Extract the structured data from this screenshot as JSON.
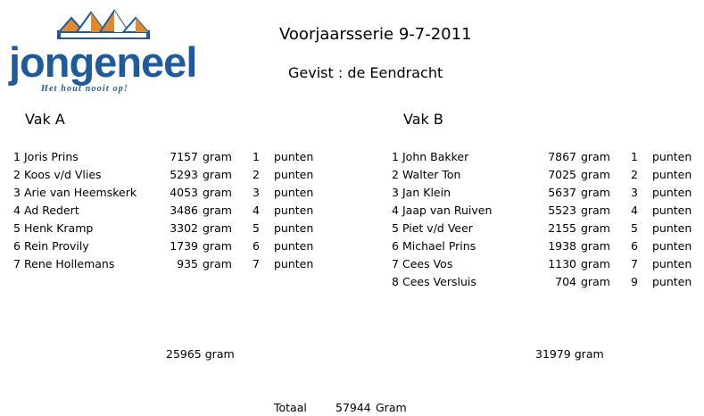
{
  "logo": {
    "name": "jongeneel",
    "tagline": "Het hout nooit op!"
  },
  "title": "Voorjaarsserie 9-7-2011",
  "subtitle": "Gevist : de Eendracht",
  "vak_a": {
    "label": "Vak  A",
    "rows": [
      {
        "rank": "1",
        "name": "Joris Prins",
        "weight": "7157",
        "unit": "gram",
        "points": "1",
        "points_label": "punten"
      },
      {
        "rank": "2",
        "name": "Koos v/d Vlies",
        "weight": "5293",
        "unit": "gram",
        "points": "2",
        "points_label": "punten"
      },
      {
        "rank": "3",
        "name": "Arie van Heemskerk",
        "weight": "4053",
        "unit": "gram",
        "points": "3",
        "points_label": "punten"
      },
      {
        "rank": "4",
        "name": "Ad Redert",
        "weight": "3486",
        "unit": "gram",
        "points": "4",
        "points_label": "punten"
      },
      {
        "rank": "5",
        "name": "Henk Kramp",
        "weight": "3302",
        "unit": "gram",
        "points": "5",
        "points_label": "punten"
      },
      {
        "rank": "6",
        "name": "Rein Provily",
        "weight": "1739",
        "unit": "gram",
        "points": "6",
        "points_label": "punten"
      },
      {
        "rank": "7",
        "name": "Rene Hollemans",
        "weight": "935",
        "unit": "gram",
        "points": "7",
        "points_label": "punten"
      }
    ],
    "total": "25965",
    "total_unit": "gram"
  },
  "vak_b": {
    "label": "Vak  B",
    "rows": [
      {
        "rank": "1",
        "name": "John Bakker",
        "weight": "7867",
        "unit": "gram",
        "points": "1",
        "points_label": "punten"
      },
      {
        "rank": "2",
        "name": "Walter Ton",
        "weight": "7025",
        "unit": "gram",
        "points": "2",
        "points_label": "punten"
      },
      {
        "rank": "3",
        "name": "Jan Klein",
        "weight": "5637",
        "unit": "gram",
        "points": "3",
        "points_label": "punten"
      },
      {
        "rank": "4",
        "name": "Jaap van Ruiven",
        "weight": "5523",
        "unit": "gram",
        "points": "4",
        "points_label": "punten"
      },
      {
        "rank": "5",
        "name": "Piet v/d Veer",
        "weight": "2155",
        "unit": "gram",
        "points": "5",
        "points_label": "punten"
      },
      {
        "rank": "6",
        "name": "Michael Prins",
        "weight": "1938",
        "unit": "gram",
        "points": "6",
        "points_label": "punten"
      },
      {
        "rank": "7",
        "name": "Cees Vos",
        "weight": "1130",
        "unit": "gram",
        "points": "7",
        "points_label": "punten"
      },
      {
        "rank": "8",
        "name": "Cees Versluis",
        "weight": "704",
        "unit": "gram",
        "points": "9",
        "points_label": "punten"
      }
    ],
    "total": "31979",
    "total_unit": "gram"
  },
  "grand_total": {
    "label": "Totaal",
    "value": "57944",
    "unit": "Gram"
  },
  "colors": {
    "brand_blue": "#1f5a9e",
    "brand_orange": "#e08a2c"
  }
}
